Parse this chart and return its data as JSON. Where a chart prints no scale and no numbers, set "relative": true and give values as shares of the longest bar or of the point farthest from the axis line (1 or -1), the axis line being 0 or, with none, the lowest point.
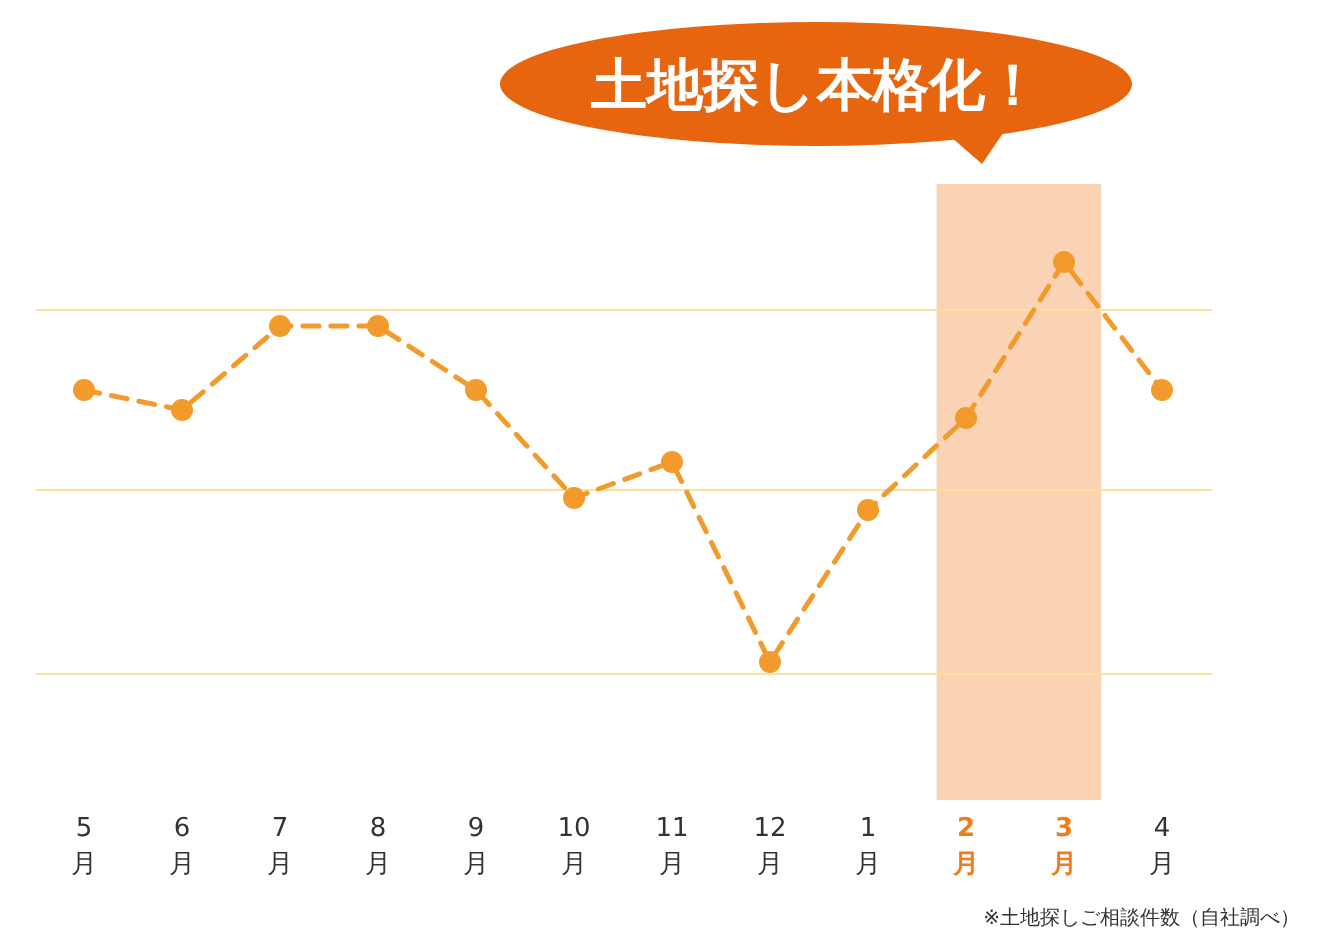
{
  "chart_data": {
    "type": "line",
    "relative": true,
    "categories": [
      "5月",
      "6月",
      "7月",
      "8月",
      "9月",
      "10月",
      "11月",
      "12月",
      "1月",
      "2月",
      "3月",
      "4月"
    ],
    "series": [
      {
        "color": "#f39a2c",
        "values": [
          0.68,
          0.63,
          0.84,
          0.84,
          0.68,
          0.41,
          0.5,
          0,
          0.38,
          0.61,
          1,
          0.68
        ]
      }
    ],
    "marker": "circle",
    "line_style": "dashed",
    "ref_lines": [
      {
        "axis": "y",
        "value": 0.88,
        "color": "#fbe0a0"
      },
      {
        "axis": "y",
        "value": 0.43,
        "color": "#fbe0a0"
      },
      {
        "axis": "y",
        "value": -0.03,
        "color": "#fbe0a0"
      }
    ],
    "bands": [
      {
        "axis": "x",
        "from": "2月",
        "to": "3月",
        "label": "土地探し本格化！",
        "color": "#f9d3b4"
      }
    ],
    "annotations": [
      "※土地探しご相談件数（自社調べ）"
    ]
  }
}
